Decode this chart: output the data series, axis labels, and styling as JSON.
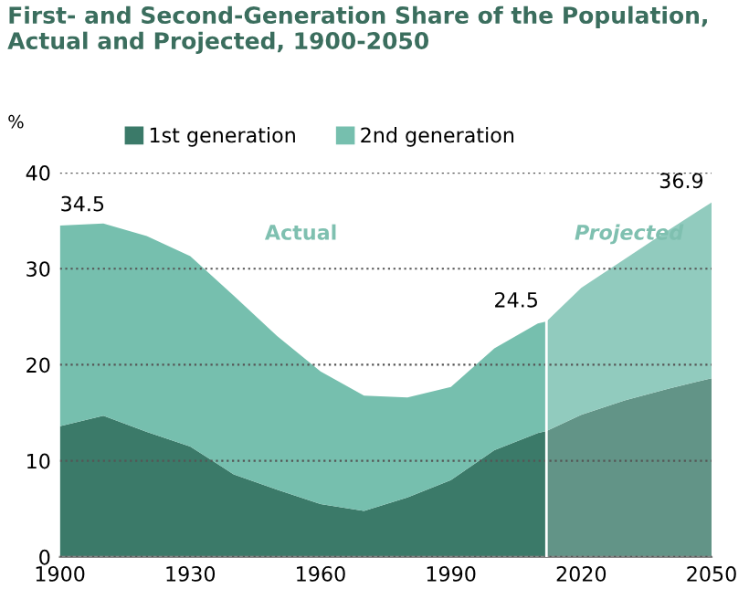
{
  "chart_data": {
    "type": "area",
    "stacked": true,
    "title": "First- and Second-Generation Share of the Population, Actual and Projected, 1900-2050",
    "ylabel": "%",
    "x": [
      1900,
      1910,
      1920,
      1930,
      1940,
      1950,
      1960,
      1970,
      1980,
      1990,
      2000,
      2010,
      2012,
      2020,
      2030,
      2040,
      2050
    ],
    "series": [
      {
        "name": "1st generation",
        "color": "#3b7a69",
        "values": [
          13.6,
          14.7,
          13.0,
          11.5,
          8.6,
          7.0,
          5.5,
          4.8,
          6.2,
          8.0,
          11.1,
          12.9,
          13.1,
          14.8,
          16.3,
          17.5,
          18.6
        ]
      },
      {
        "name": "2nd generation",
        "color": "#76bfae",
        "values": [
          20.9,
          20.0,
          20.4,
          19.8,
          18.6,
          16.0,
          13.8,
          12.0,
          10.4,
          9.7,
          10.6,
          11.4,
          11.4,
          13.2,
          14.7,
          16.5,
          18.3
        ]
      }
    ],
    "xlim": [
      1900,
      2050
    ],
    "xticks": [
      1900,
      1930,
      1960,
      1990,
      2020,
      2050
    ],
    "ylim": [
      0,
      40
    ],
    "yticks": [
      0,
      10,
      20,
      30,
      40
    ],
    "grid": "y",
    "legend": "top",
    "ref_lines": [
      {
        "axis": "x",
        "value": 2012,
        "color": "#ffffff"
      }
    ],
    "bands": [
      {
        "axis": "x",
        "from": 2012,
        "to": 2050,
        "label": "Projected",
        "color": "#ffffff"
      }
    ],
    "annotations": [
      {
        "text": "34.5",
        "x": 1900,
        "y": 34.5
      },
      {
        "text": "24.5",
        "x": 2012,
        "y": 24.5
      },
      {
        "text": "36.9",
        "x": 2050,
        "y": 36.9
      },
      "Actual"
    ]
  }
}
